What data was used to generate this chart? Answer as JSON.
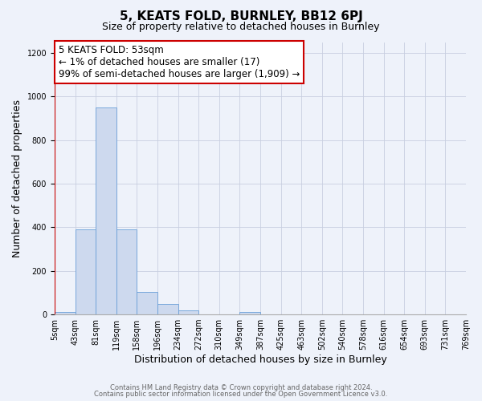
{
  "title": "5, KEATS FOLD, BURNLEY, BB12 6PJ",
  "subtitle": "Size of property relative to detached houses in Burnley",
  "xlabel": "Distribution of detached houses by size in Burnley",
  "ylabel": "Number of detached properties",
  "bin_labels": [
    "5sqm",
    "43sqm",
    "81sqm",
    "119sqm",
    "158sqm",
    "196sqm",
    "234sqm",
    "272sqm",
    "310sqm",
    "349sqm",
    "387sqm",
    "425sqm",
    "463sqm",
    "502sqm",
    "540sqm",
    "578sqm",
    "616sqm",
    "654sqm",
    "693sqm",
    "731sqm",
    "769sqm"
  ],
  "bar_values": [
    10,
    390,
    950,
    390,
    105,
    50,
    18,
    0,
    0,
    10,
    0,
    0,
    0,
    0,
    0,
    0,
    0,
    0,
    0,
    0
  ],
  "bar_color": "#cdd9ee",
  "bar_edge_color": "#6a9fd8",
  "background_color": "#eef2fa",
  "grid_color": "#c8cfe0",
  "ylim": [
    0,
    1250
  ],
  "yticks": [
    0,
    200,
    400,
    600,
    800,
    1000,
    1200
  ],
  "property_line_x": 0,
  "property_line_color": "#cc0000",
  "annotation_text": "5 KEATS FOLD: 53sqm\n← 1% of detached houses are smaller (17)\n99% of semi-detached houses are larger (1,909) →",
  "annotation_box_color": "#ffffff",
  "annotation_box_edge_color": "#cc0000",
  "footer_line1": "Contains HM Land Registry data © Crown copyright and database right 2024.",
  "footer_line2": "Contains public sector information licensed under the Open Government Licence v3.0.",
  "title_fontsize": 11,
  "subtitle_fontsize": 9,
  "xlabel_fontsize": 9,
  "ylabel_fontsize": 9,
  "annotation_fontsize": 8.5,
  "tick_fontsize": 7
}
